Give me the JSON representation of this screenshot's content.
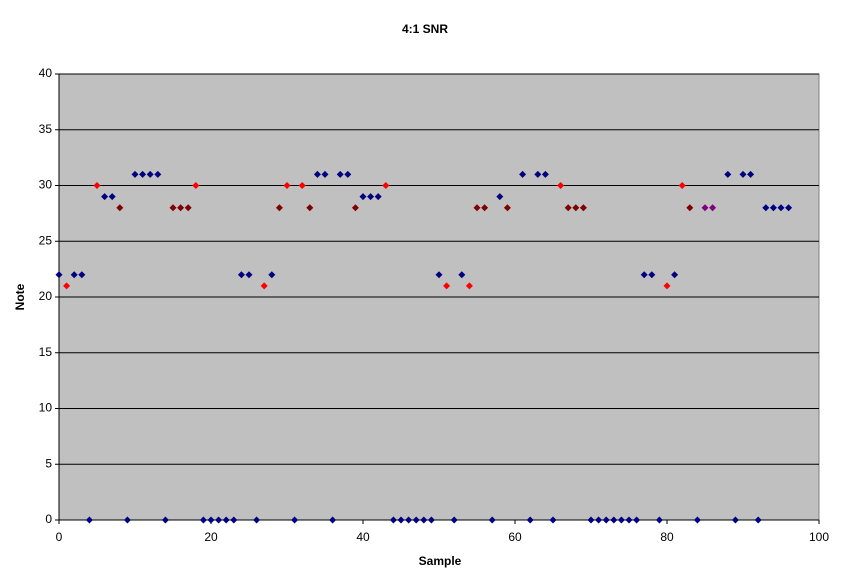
{
  "chart_data": {
    "type": "scatter",
    "title": "4:1 SNR",
    "x_label": "Sample",
    "y_label": "Note",
    "xlim": [
      0,
      100
    ],
    "xticks": [
      0,
      20,
      40,
      60,
      80,
      100
    ],
    "ylim": [
      0,
      40
    ],
    "yticks": [
      0,
      5,
      10,
      15,
      20,
      25,
      30,
      35,
      40
    ],
    "grid": true,
    "background": "#c0c0c0",
    "series": [
      {
        "color": "#000080",
        "x": [
          0,
          2,
          3,
          4,
          6,
          7,
          9,
          10,
          11,
          12,
          13,
          14,
          19,
          20,
          21,
          22,
          23,
          24,
          25,
          26,
          28,
          31,
          34,
          35,
          36,
          37,
          38,
          40,
          41,
          42,
          44,
          45,
          46,
          47,
          48,
          49,
          50,
          52,
          53,
          57,
          58,
          61,
          62,
          63,
          64,
          65,
          70,
          71,
          72,
          73,
          74,
          75,
          76,
          77,
          78,
          79,
          81,
          84,
          88,
          89,
          90,
          91,
          92,
          93,
          94,
          95,
          96
        ],
        "values": [
          22,
          22,
          22,
          0,
          29,
          29,
          0,
          31,
          31,
          31,
          31,
          0,
          0,
          0,
          0,
          0,
          0,
          22,
          22,
          0,
          22,
          0,
          31,
          31,
          0,
          31,
          31,
          29,
          29,
          29,
          0,
          0,
          0,
          0,
          0,
          0,
          22,
          0,
          22,
          0,
          29,
          31,
          0,
          31,
          31,
          0,
          0,
          0,
          0,
          0,
          0,
          0,
          0,
          22,
          22,
          0,
          22,
          0,
          31,
          0,
          31,
          31,
          0,
          28,
          28,
          28,
          28
        ]
      },
      {
        "color": "#ff0000",
        "x": [
          1,
          5,
          18,
          27,
          30,
          32,
          43,
          51,
          54,
          66,
          80,
          82
        ],
        "values": [
          21,
          30,
          30,
          21,
          30,
          30,
          30,
          21,
          21,
          30,
          21,
          30
        ]
      },
      {
        "color": "#800000",
        "x": [
          8,
          15,
          16,
          17,
          29,
          33,
          39,
          55,
          56,
          59,
          67,
          68,
          69,
          83
        ],
        "values": [
          28,
          28,
          28,
          28,
          28,
          28,
          28,
          28,
          28,
          28,
          28,
          28,
          28,
          28
        ]
      },
      {
        "color": "#800080",
        "x": [
          85,
          86
        ],
        "values": [
          28,
          28
        ]
      }
    ]
  }
}
